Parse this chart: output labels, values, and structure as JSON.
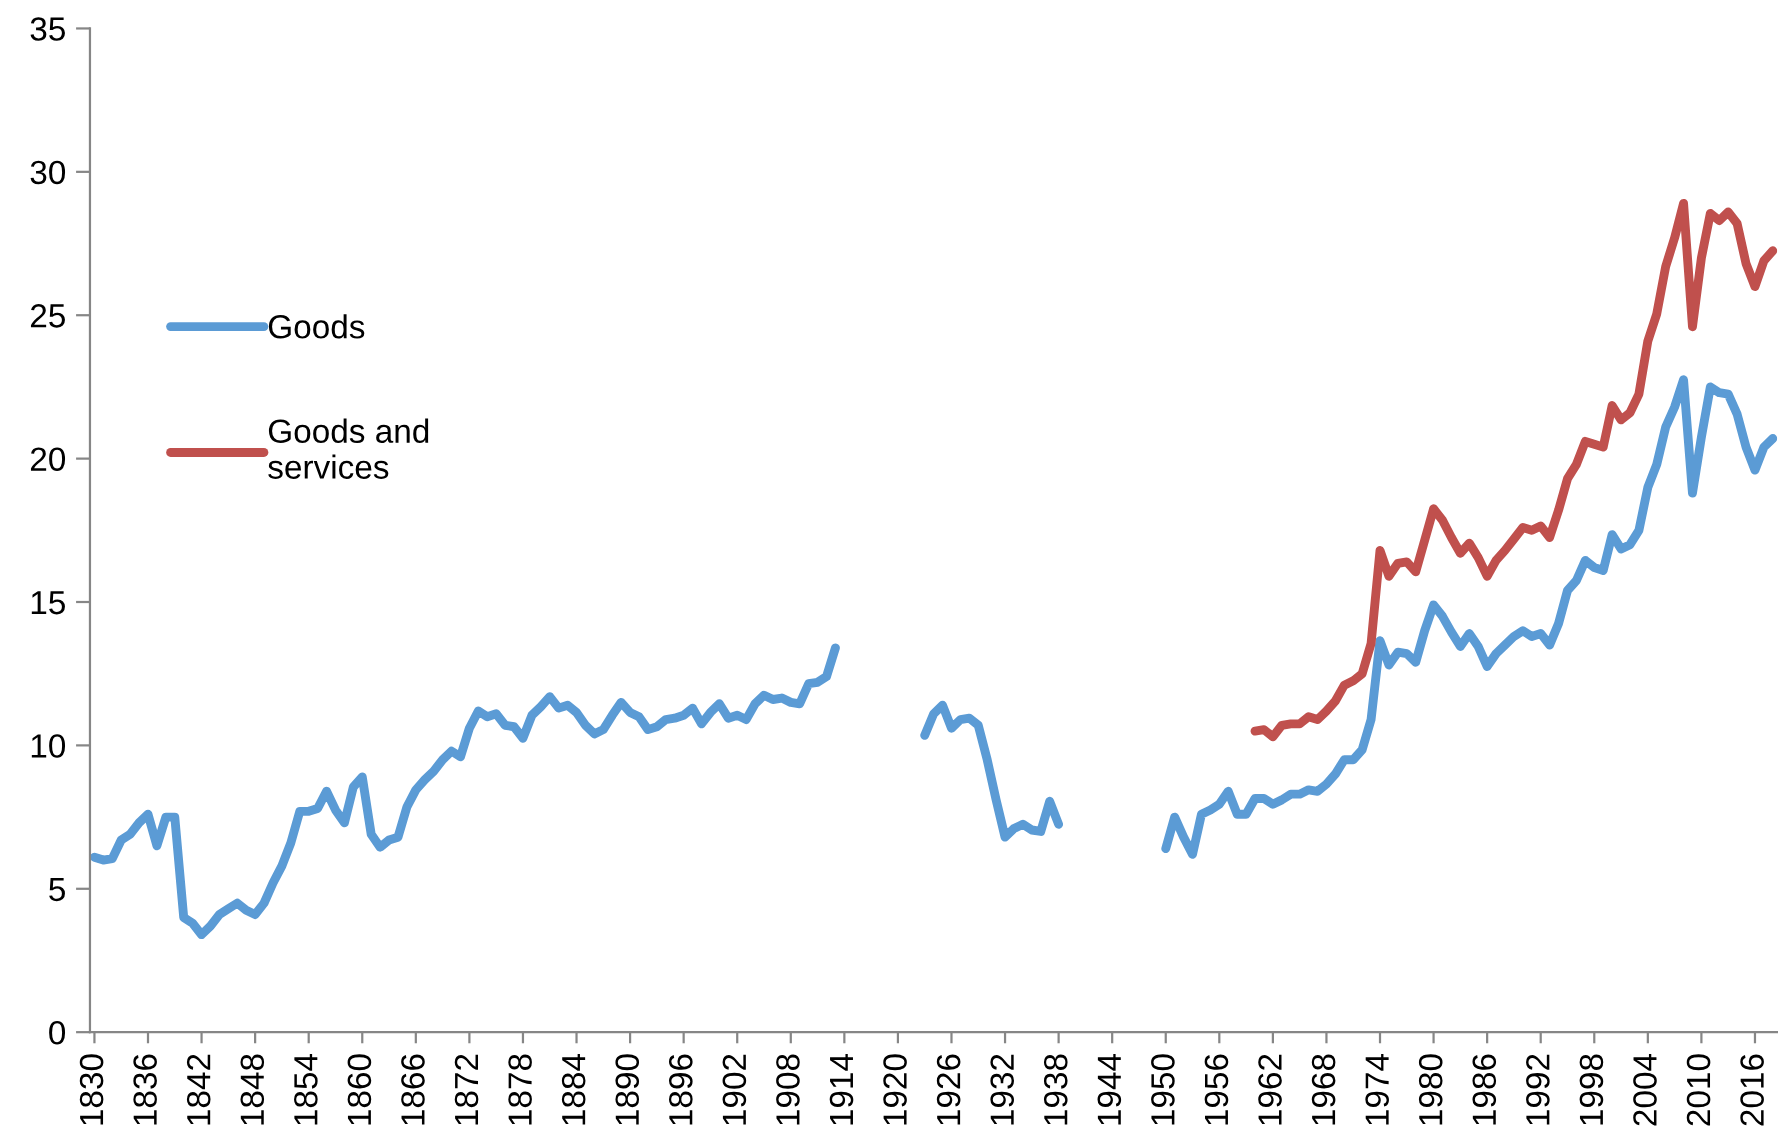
{
  "chart_data": {
    "type": "line",
    "x": [
      1830,
      1831,
      1832,
      1833,
      1834,
      1835,
      1836,
      1837,
      1838,
      1839,
      1840,
      1841,
      1842,
      1843,
      1844,
      1845,
      1846,
      1847,
      1848,
      1849,
      1850,
      1851,
      1852,
      1853,
      1854,
      1855,
      1856,
      1857,
      1858,
      1859,
      1860,
      1861,
      1862,
      1863,
      1864,
      1865,
      1866,
      1867,
      1868,
      1869,
      1870,
      1871,
      1872,
      1873,
      1874,
      1875,
      1876,
      1877,
      1878,
      1879,
      1880,
      1881,
      1882,
      1883,
      1884,
      1885,
      1886,
      1887,
      1888,
      1889,
      1890,
      1891,
      1892,
      1893,
      1894,
      1895,
      1896,
      1897,
      1898,
      1899,
      1900,
      1901,
      1902,
      1903,
      1904,
      1905,
      1906,
      1907,
      1908,
      1909,
      1910,
      1911,
      1912,
      1913,
      1914,
      1915,
      1916,
      1917,
      1918,
      1919,
      1920,
      1921,
      1922,
      1923,
      1924,
      1925,
      1926,
      1927,
      1928,
      1929,
      1930,
      1931,
      1932,
      1933,
      1934,
      1935,
      1936,
      1937,
      1938,
      1939,
      1940,
      1941,
      1942,
      1943,
      1944,
      1945,
      1946,
      1947,
      1948,
      1949,
      1950,
      1951,
      1952,
      1953,
      1954,
      1955,
      1956,
      1957,
      1958,
      1959,
      1960,
      1961,
      1962,
      1963,
      1964,
      1965,
      1966,
      1967,
      1968,
      1969,
      1970,
      1971,
      1972,
      1973,
      1974,
      1975,
      1976,
      1977,
      1978,
      1979,
      1980,
      1981,
      1982,
      1983,
      1984,
      1985,
      1986,
      1987,
      1988,
      1989,
      1990,
      1991,
      1992,
      1993,
      1994,
      1995,
      1996,
      1997,
      1998,
      1999,
      2000,
      2001,
      2002,
      2003,
      2004,
      2005,
      2006,
      2007,
      2008,
      2009,
      2010,
      2011,
      2012,
      2013,
      2014,
      2015,
      2016,
      2017,
      2018
    ],
    "series": [
      {
        "name": "Goods",
        "color": "#5b9bd5",
        "values": [
          6.1,
          6.0,
          6.05,
          6.7,
          6.9,
          7.3,
          7.6,
          6.5,
          7.5,
          7.5,
          4.0,
          3.8,
          3.4,
          3.7,
          4.1,
          4.3,
          4.5,
          4.25,
          4.1,
          4.5,
          5.2,
          5.8,
          6.6,
          7.7,
          7.7,
          7.8,
          8.4,
          7.75,
          7.3,
          8.55,
          8.9,
          6.9,
          6.45,
          6.7,
          6.8,
          7.85,
          8.45,
          8.8,
          9.1,
          9.5,
          9.8,
          9.6,
          10.6,
          11.2,
          11.0,
          11.1,
          10.7,
          10.65,
          10.25,
          11.05,
          11.35,
          11.7,
          11.3,
          11.4,
          11.15,
          10.7,
          10.4,
          10.55,
          11.05,
          11.5,
          11.15,
          11.0,
          10.55,
          10.65,
          10.9,
          10.95,
          11.05,
          11.3,
          10.75,
          11.15,
          11.45,
          10.95,
          11.05,
          10.9,
          11.45,
          11.75,
          11.6,
          11.65,
          11.5,
          11.45,
          12.15,
          12.2,
          12.4,
          13.4,
          null,
          null,
          null,
          null,
          null,
          null,
          null,
          null,
          null,
          10.35,
          11.1,
          11.4,
          10.6,
          10.9,
          10.95,
          10.7,
          9.5,
          8.1,
          6.8,
          7.1,
          7.25,
          7.05,
          7.0,
          8.05,
          7.25,
          null,
          null,
          null,
          null,
          null,
          null,
          null,
          null,
          null,
          null,
          null,
          6.4,
          7.5,
          6.8,
          6.2,
          7.6,
          7.75,
          7.95,
          8.4,
          7.6,
          7.6,
          8.15,
          8.15,
          7.95,
          8.1,
          8.3,
          8.3,
          8.45,
          8.4,
          8.65,
          9.0,
          9.5,
          9.5,
          9.85,
          10.9,
          13.65,
          12.8,
          13.25,
          13.2,
          12.9,
          14.0,
          14.9,
          14.5,
          13.95,
          13.45,
          13.9,
          13.45,
          12.75,
          13.2,
          13.5,
          13.8,
          14.0,
          13.8,
          13.9,
          13.5,
          14.25,
          15.4,
          15.75,
          16.45,
          16.2,
          16.1,
          17.35,
          16.85,
          17.0,
          17.5,
          19.0,
          19.8,
          21.1,
          21.8,
          22.75,
          18.8,
          20.75,
          22.5,
          22.3,
          22.25,
          21.55,
          20.4,
          19.6,
          20.4,
          20.7
        ]
      },
      {
        "name": "Goods and\nservices",
        "color": "#c0504d",
        "x": [
          1960,
          1961,
          1962,
          1963,
          1964,
          1965,
          1966,
          1967,
          1968,
          1969,
          1970,
          1971,
          1972,
          1973,
          1974,
          1975,
          1976,
          1977,
          1978,
          1979,
          1980,
          1981,
          1982,
          1983,
          1984,
          1985,
          1986,
          1987,
          1988,
          1989,
          1990,
          1991,
          1992,
          1993,
          1994,
          1995,
          1996,
          1997,
          1998,
          1999,
          2000,
          2001,
          2002,
          2003,
          2004,
          2005,
          2006,
          2007,
          2008,
          2009,
          2010,
          2011,
          2012,
          2013,
          2014,
          2015,
          2016,
          2017,
          2018
        ],
        "values": [
          10.5,
          10.55,
          10.3,
          10.7,
          10.75,
          10.75,
          11.0,
          10.9,
          11.2,
          11.55,
          12.1,
          12.25,
          12.5,
          13.55,
          16.8,
          15.9,
          16.35,
          16.4,
          16.05,
          17.15,
          18.25,
          17.85,
          17.25,
          16.7,
          17.05,
          16.55,
          15.9,
          16.45,
          16.8,
          17.2,
          17.6,
          17.5,
          17.65,
          17.25,
          18.2,
          19.3,
          19.8,
          20.6,
          20.5,
          20.4,
          21.85,
          21.35,
          21.6,
          22.25,
          24.1,
          25.05,
          26.7,
          27.7,
          28.9,
          24.6,
          27.0,
          28.55,
          28.3,
          28.6,
          28.2,
          26.8,
          26.0,
          26.9,
          27.25
        ]
      }
    ],
    "xlim": [
      1829.5,
      2018.5
    ],
    "xticks": [
      1830,
      1836,
      1842,
      1848,
      1854,
      1860,
      1866,
      1872,
      1878,
      1884,
      1890,
      1896,
      1902,
      1908,
      1914,
      1920,
      1926,
      1932,
      1938,
      1944,
      1950,
      1956,
      1962,
      1968,
      1974,
      1980,
      1986,
      1992,
      1998,
      2004,
      2010,
      2016
    ],
    "ylim": [
      0,
      35
    ],
    "yticks": [
      0,
      5,
      10,
      15,
      20,
      25,
      30,
      35
    ],
    "legend": "left",
    "grid": false,
    "marker": "none",
    "line_style": "solid"
  }
}
